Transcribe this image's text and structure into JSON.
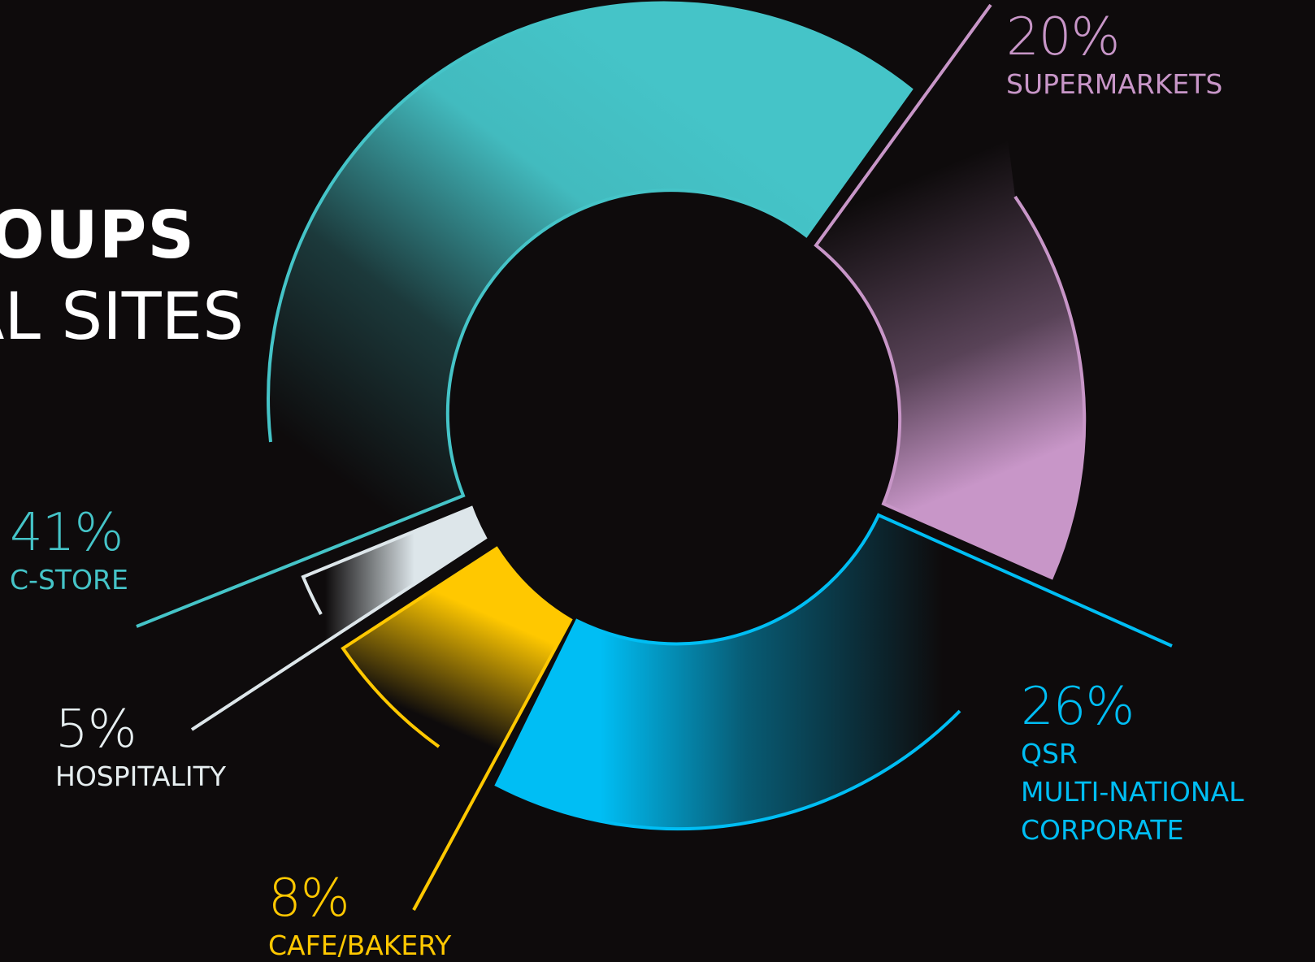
{
  "title": {
    "line1": "ROUPS",
    "line2": "AL SITES"
  },
  "colors": {
    "background": "#0e0b0c",
    "c_store": "#45c4c8",
    "supermarkets": "#c896c8",
    "qsr": "#00bef4",
    "cafe_bakery": "#ffc800",
    "hospitality": "#dde6ea"
  },
  "chart_data": {
    "type": "pie",
    "variant": "donut",
    "series": [
      {
        "name": "C-STORE",
        "value": 41,
        "percent_label": "41%",
        "color": "#45c4c8"
      },
      {
        "name": "SUPERMARKETS",
        "value": 20,
        "percent_label": "20%",
        "color": "#c896c8"
      },
      {
        "name": "QSR MULTI-NATIONAL CORPORATE",
        "value": 26,
        "percent_label": "26%",
        "color": "#00bef4"
      },
      {
        "name": "CAFE/BAKERY",
        "value": 8,
        "percent_label": "8%",
        "color": "#ffc800"
      },
      {
        "name": "HOSPITALITY",
        "value": 5,
        "percent_label": "5%",
        "color": "#dde6ea"
      }
    ],
    "labels": {
      "c_store": {
        "pct": "41%",
        "name": "C-STORE"
      },
      "supermarkets": {
        "pct": "20%",
        "name": "SUPERMARKETS"
      },
      "qsr": {
        "pct": "26%",
        "lines": [
          "QSR",
          "MULTI-NATIONAL",
          "CORPORATE"
        ]
      },
      "cafe_bakery": {
        "pct": "8%",
        "name": "CAFE/BAKERY"
      },
      "hospitality": {
        "pct": "5%",
        "name": "HOSPITALITY"
      }
    }
  }
}
